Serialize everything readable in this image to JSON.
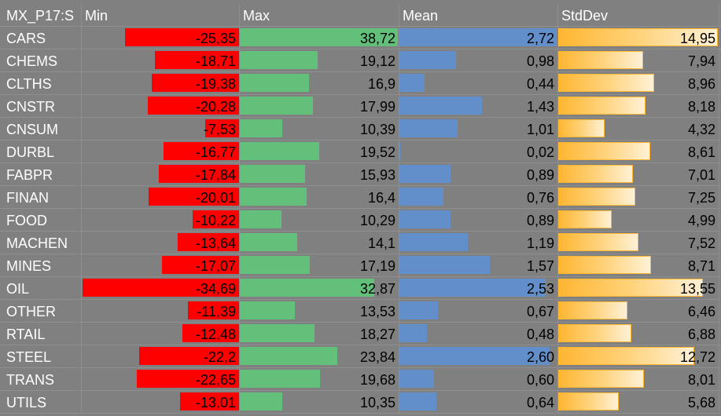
{
  "header": {
    "corner": "MX_P17:S",
    "min": "Min",
    "max": "Max",
    "mean": "Mean",
    "stddev": "StdDev"
  },
  "colors": {
    "min_bar": "#ff0000",
    "max_bar": "#63c07a",
    "mean_bar": "#628fca",
    "stddev_bar": "#ffb632",
    "background": "#808080"
  },
  "scales": {
    "min_abs_max": 34.69,
    "max_max": 38.72,
    "mean_max": 2.72,
    "stddev_max": 14.95
  },
  "rows": [
    {
      "label": "CARS",
      "min": "-25,35",
      "max": "38,72",
      "mean": "2,72",
      "stddev": "14,95"
    },
    {
      "label": "CHEMS",
      "min": "-18,71",
      "max": "19,12",
      "mean": "0,98",
      "stddev": "7,94"
    },
    {
      "label": "CLTHS",
      "min": "-19,38",
      "max": "16,9",
      "mean": "0,44",
      "stddev": "8,96"
    },
    {
      "label": "CNSTR",
      "min": "-20,28",
      "max": "17,99",
      "mean": "1,43",
      "stddev": "8,18"
    },
    {
      "label": "CNSUM",
      "min": "-7,53",
      "max": "10,39",
      "mean": "1,01",
      "stddev": "4,32"
    },
    {
      "label": "DURBL",
      "min": "-16,77",
      "max": "19,52",
      "mean": "0,02",
      "stddev": "8,61"
    },
    {
      "label": "FABPR",
      "min": "-17,84",
      "max": "15,93",
      "mean": "0,89",
      "stddev": "7,01"
    },
    {
      "label": "FINAN",
      "min": "-20,01",
      "max": "16,4",
      "mean": "0,76",
      "stddev": "7,25"
    },
    {
      "label": "FOOD",
      "min": "-10,22",
      "max": "10,29",
      "mean": "0,89",
      "stddev": "4,99"
    },
    {
      "label": "MACHEN",
      "min": "-13,64",
      "max": "14,1",
      "mean": "1,19",
      "stddev": "7,52"
    },
    {
      "label": "MINES",
      "min": "-17,07",
      "max": "17,19",
      "mean": "1,57",
      "stddev": "8,71"
    },
    {
      "label": "OIL",
      "min": "-34,69",
      "max": "32,87",
      "mean": "2,53",
      "stddev": "13,55"
    },
    {
      "label": "OTHER",
      "min": "-11,39",
      "max": "13,53",
      "mean": "0,67",
      "stddev": "6,46"
    },
    {
      "label": "RTAIL",
      "min": "-12,48",
      "max": "18,27",
      "mean": "0,48",
      "stddev": "6,88"
    },
    {
      "label": "STEEL",
      "min": "-22,2",
      "max": "23,84",
      "mean": "2,60",
      "stddev": "12,72"
    },
    {
      "label": "TRANS",
      "min": "-22,65",
      "max": "19,68",
      "mean": "0,60",
      "stddev": "8,01"
    },
    {
      "label": "UTILS",
      "min": "-13,01",
      "max": "10,35",
      "mean": "0,64",
      "stddev": "5,68"
    }
  ]
}
